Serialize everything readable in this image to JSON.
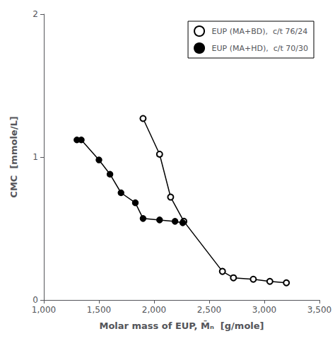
{
  "chart_data": {
    "type": "line",
    "xlabel": "Molar mass of EUP, M̄ₙ  [g/mole]",
    "ylabel": "CMC  [mmole/L]",
    "xlim": [
      1000,
      3500
    ],
    "ylim": [
      0,
      2
    ],
    "xticks": [
      1000,
      1500,
      2000,
      2500,
      3000,
      3500
    ],
    "yticks": [
      0,
      1,
      2
    ],
    "grid": false,
    "legend": "upper right",
    "series": [
      {
        "name": "EUP (MA+BD),  c/t 76/24",
        "color": "#000000",
        "marker": "emptyCircle",
        "x": [
          1900,
          2050,
          2150,
          2270,
          2620,
          2720,
          2900,
          3050,
          3200
        ],
        "values": [
          1.27,
          1.02,
          0.72,
          0.55,
          0.2,
          0.155,
          0.145,
          0.13,
          0.12
        ]
      },
      {
        "name": "EUP (MA+HD),  c/t 70/30",
        "color": "#000000",
        "marker": "circle",
        "x": [
          1300,
          1340,
          1500,
          1600,
          1700,
          1830,
          1900,
          2050,
          2190,
          2260
        ],
        "values": [
          1.12,
          1.12,
          0.98,
          0.88,
          0.75,
          0.68,
          0.57,
          0.56,
          0.55,
          0.54
        ]
      }
    ]
  }
}
